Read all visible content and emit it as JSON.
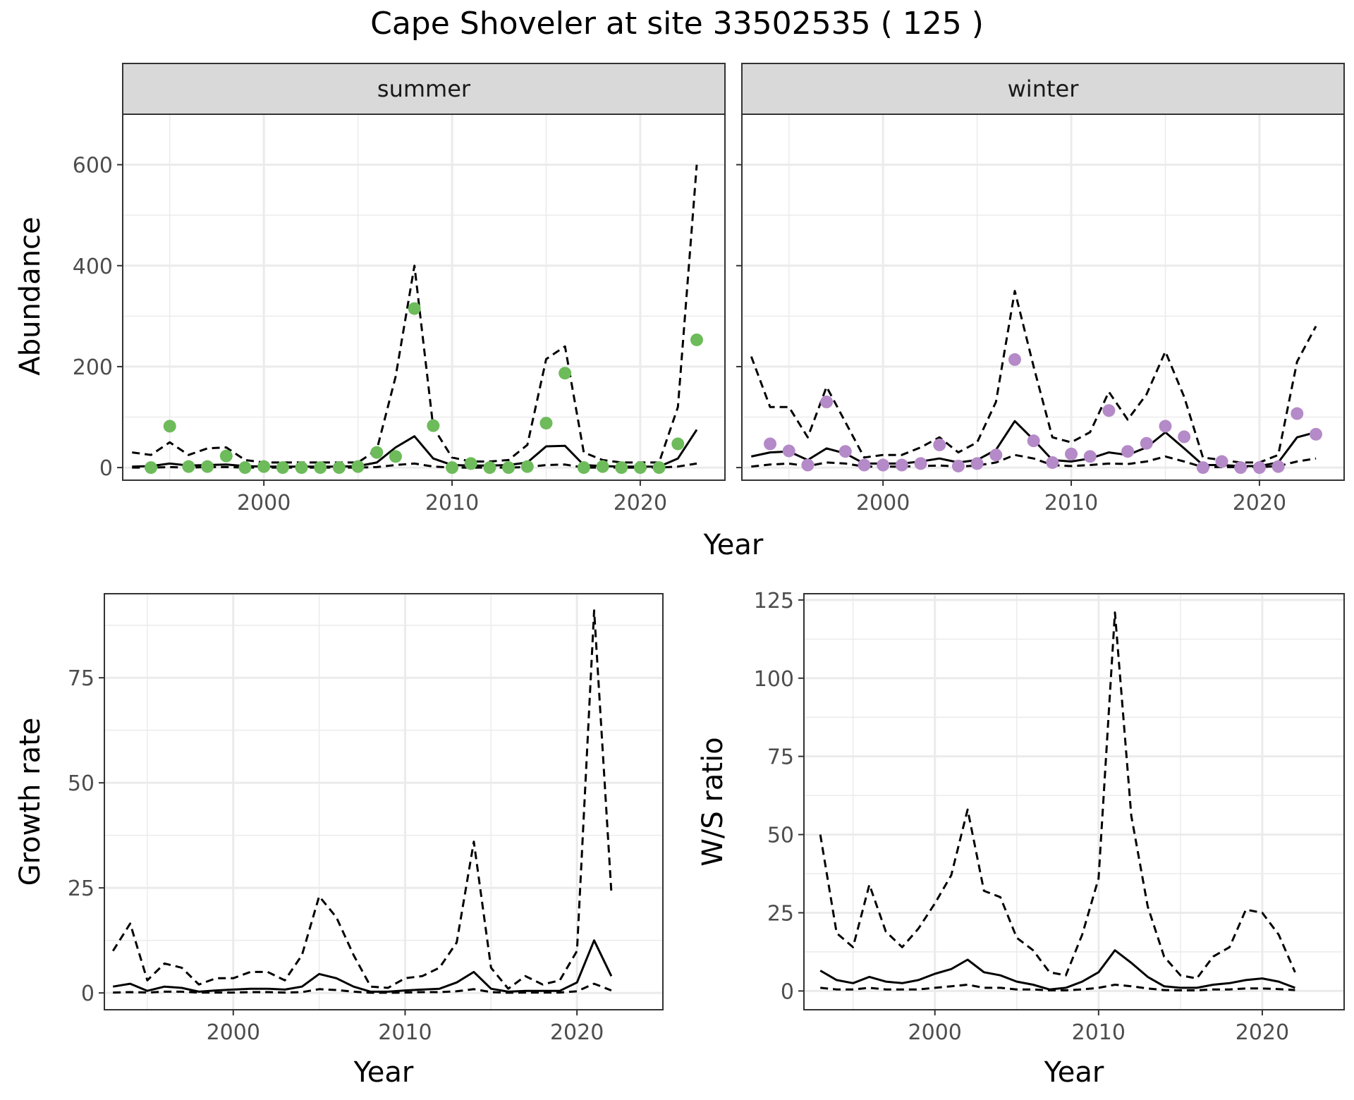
{
  "figure_title": "Cape Shoveler at site 33502535 ( 125 )",
  "colors": {
    "summer": "#6dbb5a",
    "winter": "#b58ac8",
    "line": "#000000",
    "strip": "#d9d9d9",
    "grid": "#ebebeb"
  },
  "chart_data": [
    {
      "id": "summer",
      "type": "line",
      "facet_label": "summer",
      "xlabel": "Year",
      "ylabel": "Abundance",
      "xlim": [
        1992.5,
        2024.5
      ],
      "ylim": [
        -25,
        700
      ],
      "xticks": [
        2000,
        2010,
        2020
      ],
      "yticks": [
        0,
        200,
        400,
        600
      ],
      "grid": true,
      "point_color": "#6dbb5a",
      "points": {
        "x": [
          1994,
          1995,
          1996,
          1997,
          1998,
          1999,
          2000,
          2001,
          2002,
          2003,
          2004,
          2005,
          2006,
          2007,
          2008,
          2009,
          2010,
          2011,
          2012,
          2013,
          2014,
          2015,
          2016,
          2017,
          2018,
          2019,
          2020,
          2021,
          2022,
          2023
        ],
        "y": [
          0,
          82,
          2,
          2,
          23,
          0,
          2,
          0,
          0,
          0,
          0,
          2,
          30,
          22,
          315,
          83,
          0,
          8,
          0,
          0,
          2,
          88,
          187,
          0,
          2,
          0,
          0,
          0,
          47,
          253
        ]
      },
      "series": [
        {
          "name": "",
          "style": "solid",
          "x": [
            1993,
            1994,
            1995,
            1996,
            1997,
            1998,
            1999,
            2000,
            2001,
            2002,
            2003,
            2004,
            2005,
            2006,
            2007,
            2008,
            2009,
            2010,
            2011,
            2012,
            2013,
            2014,
            2015,
            2016,
            2017,
            2018,
            2019,
            2020,
            2021,
            2022,
            2023
          ],
          "y": [
            2,
            3,
            8,
            4,
            5,
            6,
            3,
            2,
            2,
            2,
            2,
            2,
            3,
            10,
            40,
            62,
            18,
            5,
            4,
            4,
            5,
            10,
            42,
            43,
            5,
            3,
            2,
            2,
            2,
            18,
            75
          ]
        },
        {
          "name": "",
          "style": "dashed",
          "x": [
            1993,
            1994,
            1995,
            1996,
            1997,
            1998,
            1999,
            2000,
            2001,
            2002,
            2003,
            2004,
            2005,
            2006,
            2007,
            2008,
            2009,
            2010,
            2011,
            2012,
            2013,
            2014,
            2015,
            2016,
            2017,
            2018,
            2019,
            2020,
            2021,
            2022,
            2023
          ],
          "y": [
            30,
            25,
            50,
            25,
            38,
            40,
            15,
            10,
            10,
            10,
            10,
            10,
            10,
            35,
            180,
            400,
            80,
            20,
            12,
            12,
            15,
            45,
            215,
            240,
            30,
            15,
            10,
            10,
            10,
            120,
            600
          ]
        },
        {
          "name": "",
          "style": "dashed",
          "x": [
            1993,
            1994,
            1995,
            1996,
            1997,
            1998,
            1999,
            2000,
            2001,
            2002,
            2003,
            2004,
            2005,
            2006,
            2007,
            2008,
            2009,
            2010,
            2011,
            2012,
            2013,
            2014,
            2015,
            2016,
            2017,
            2018,
            2019,
            2020,
            2021,
            2022,
            2023
          ],
          "y": [
            0,
            0,
            1,
            0,
            1,
            1,
            0,
            0,
            0,
            0,
            0,
            0,
            0,
            1,
            5,
            8,
            2,
            0,
            0,
            0,
            0,
            1,
            5,
            6,
            0,
            0,
            0,
            0,
            0,
            2,
            8
          ]
        }
      ]
    },
    {
      "id": "winter",
      "type": "line",
      "facet_label": "winter",
      "xlabel": "Year",
      "ylabel": "Abundance",
      "xlim": [
        1992.5,
        2024.5
      ],
      "ylim": [
        -25,
        700
      ],
      "xticks": [
        2000,
        2010,
        2020
      ],
      "yticks": [
        0,
        200,
        400,
        600
      ],
      "grid": true,
      "point_color": "#b58ac8",
      "points": {
        "x": [
          1994,
          1995,
          1996,
          1997,
          1998,
          1999,
          2000,
          2001,
          2002,
          2003,
          2004,
          2005,
          2006,
          2007,
          2008,
          2009,
          2010,
          2011,
          2012,
          2013,
          2014,
          2015,
          2016,
          2017,
          2018,
          2019,
          2020,
          2021,
          2022,
          2023
        ],
        "y": [
          47,
          33,
          5,
          130,
          32,
          5,
          5,
          5,
          8,
          45,
          3,
          8,
          25,
          214,
          53,
          10,
          27,
          22,
          113,
          32,
          48,
          82,
          61,
          0,
          12,
          0,
          0,
          2,
          107,
          66
        ]
      },
      "series": [
        {
          "name": "",
          "style": "solid",
          "x": [
            1993,
            1994,
            1995,
            1996,
            1997,
            1998,
            1999,
            2000,
            2001,
            2002,
            2003,
            2004,
            2005,
            2006,
            2007,
            2008,
            2009,
            2010,
            2011,
            2012,
            2013,
            2014,
            2015,
            2016,
            2017,
            2018,
            2019,
            2020,
            2021,
            2022,
            2023
          ],
          "y": [
            22,
            30,
            32,
            15,
            38,
            28,
            8,
            8,
            8,
            12,
            18,
            10,
            15,
            35,
            92,
            55,
            15,
            12,
            18,
            30,
            25,
            40,
            70,
            38,
            5,
            5,
            3,
            3,
            10,
            60,
            70
          ]
        },
        {
          "name": "",
          "style": "dashed",
          "x": [
            1993,
            1994,
            1995,
            1996,
            1997,
            1998,
            1999,
            2000,
            2001,
            2002,
            2003,
            2004,
            2005,
            2006,
            2007,
            2008,
            2009,
            2010,
            2011,
            2012,
            2013,
            2014,
            2015,
            2016,
            2017,
            2018,
            2019,
            2020,
            2021,
            2022,
            2023
          ],
          "y": [
            220,
            120,
            120,
            60,
            160,
            90,
            20,
            25,
            25,
            40,
            60,
            30,
            50,
            130,
            350,
            200,
            60,
            50,
            70,
            150,
            95,
            145,
            230,
            140,
            20,
            15,
            10,
            10,
            25,
            210,
            280
          ]
        },
        {
          "name": "",
          "style": "dashed",
          "x": [
            1993,
            1994,
            1995,
            1996,
            1997,
            1998,
            1999,
            2000,
            2001,
            2002,
            2003,
            2004,
            2005,
            2006,
            2007,
            2008,
            2009,
            2010,
            2011,
            2012,
            2013,
            2014,
            2015,
            2016,
            2017,
            2018,
            2019,
            2020,
            2021,
            2022,
            2023
          ],
          "y": [
            2,
            6,
            8,
            3,
            10,
            8,
            2,
            2,
            2,
            3,
            4,
            2,
            4,
            10,
            25,
            18,
            5,
            3,
            5,
            8,
            7,
            12,
            22,
            12,
            1,
            1,
            1,
            1,
            3,
            12,
            18
          ]
        }
      ]
    },
    {
      "id": "growth",
      "type": "line",
      "xlabel": "Year",
      "ylabel": "Growth rate",
      "xlim": [
        1992.5,
        2025
      ],
      "ylim": [
        -4,
        95
      ],
      "xticks": [
        2000,
        2010,
        2020
      ],
      "yticks": [
        0,
        25,
        50,
        75
      ],
      "grid": true,
      "series": [
        {
          "name": "",
          "style": "solid",
          "x": [
            1993,
            1994,
            1995,
            1996,
            1997,
            1998,
            1999,
            2000,
            2001,
            2002,
            2003,
            2004,
            2005,
            2006,
            2007,
            2008,
            2009,
            2010,
            2011,
            2012,
            2013,
            2014,
            2015,
            2016,
            2017,
            2018,
            2019,
            2020,
            2021,
            2022
          ],
          "y": [
            1.5,
            2.2,
            0.5,
            1.5,
            1.2,
            0.3,
            0.6,
            0.8,
            1.0,
            1.0,
            0.8,
            1.5,
            4.5,
            3.5,
            1.5,
            0.3,
            0.3,
            0.6,
            0.8,
            1.0,
            2.5,
            5.0,
            1.0,
            0.3,
            0.5,
            0.5,
            0.5,
            2.5,
            12.5,
            4.0
          ]
        },
        {
          "name": "",
          "style": "dashed",
          "x": [
            1993,
            1994,
            1995,
            1996,
            1997,
            1998,
            1999,
            2000,
            2001,
            2002,
            2003,
            2004,
            2005,
            2006,
            2007,
            2008,
            2009,
            2010,
            2011,
            2012,
            2013,
            2014,
            2015,
            2016,
            2017,
            2018,
            2019,
            2020,
            2021,
            2022
          ],
          "y": [
            10,
            16.5,
            3,
            7,
            6,
            2,
            3.5,
            3.5,
            5,
            5,
            3,
            9,
            23,
            18,
            9,
            1.5,
            1.2,
            3.5,
            4,
            6,
            12,
            36,
            6,
            1,
            4,
            2,
            3,
            10,
            91,
            24
          ]
        },
        {
          "name": "",
          "style": "dashed",
          "x": [
            1993,
            1994,
            1995,
            1996,
            1997,
            1998,
            1999,
            2000,
            2001,
            2002,
            2003,
            2004,
            2005,
            2006,
            2007,
            2008,
            2009,
            2010,
            2011,
            2012,
            2013,
            2014,
            2015,
            2016,
            2017,
            2018,
            2019,
            2020,
            2021,
            2022
          ],
          "y": [
            0.1,
            0.2,
            0.1,
            0.3,
            0.3,
            0.1,
            0.1,
            0.1,
            0.2,
            0.2,
            0.1,
            0.2,
            0.9,
            0.7,
            0.3,
            0.05,
            0.05,
            0.1,
            0.2,
            0.2,
            0.4,
            0.9,
            0.2,
            0.05,
            0.1,
            0.1,
            0.1,
            0.4,
            2.2,
            0.6
          ]
        }
      ]
    },
    {
      "id": "ws",
      "type": "line",
      "xlabel": "Year",
      "ylabel": "W/S ratio",
      "xlim": [
        1992,
        2025
      ],
      "ylim": [
        -6,
        127
      ],
      "xticks": [
        2000,
        2010,
        2020
      ],
      "yticks": [
        0,
        25,
        50,
        75,
        100,
        125
      ],
      "grid": true,
      "series": [
        {
          "name": "",
          "style": "solid",
          "x": [
            1993,
            1994,
            1995,
            1996,
            1997,
            1998,
            1999,
            2000,
            2001,
            2002,
            2003,
            2004,
            2005,
            2006,
            2007,
            2008,
            2009,
            2010,
            2011,
            2012,
            2013,
            2014,
            2015,
            2016,
            2017,
            2018,
            2019,
            2020,
            2021,
            2022
          ],
          "y": [
            6.5,
            3.5,
            2.5,
            4.5,
            3,
            2.5,
            3.5,
            5.5,
            7,
            10,
            6,
            5,
            3,
            2,
            0.5,
            1,
            3,
            6,
            13,
            9,
            4.5,
            1.5,
            1,
            1,
            2,
            2.5,
            3.5,
            4,
            3,
            1
          ]
        },
        {
          "name": "",
          "style": "dashed",
          "x": [
            1993,
            1994,
            1995,
            1996,
            1997,
            1998,
            1999,
            2000,
            2001,
            2002,
            2003,
            2004,
            2005,
            2006,
            2007,
            2008,
            2009,
            2010,
            2011,
            2012,
            2013,
            2014,
            2015,
            2016,
            2017,
            2018,
            2019,
            2020,
            2021,
            2022
          ],
          "y": [
            50,
            18.5,
            14,
            34,
            19,
            14,
            20,
            28,
            37,
            58,
            32,
            30,
            17,
            13,
            6,
            5,
            18,
            36,
            121,
            56,
            27,
            11,
            5,
            4,
            11,
            14,
            26,
            25,
            18,
            6
          ]
        },
        {
          "name": "",
          "style": "dashed",
          "x": [
            1993,
            1994,
            1995,
            1996,
            1997,
            1998,
            1999,
            2000,
            2001,
            2002,
            2003,
            2004,
            2005,
            2006,
            2007,
            2008,
            2009,
            2010,
            2011,
            2012,
            2013,
            2014,
            2015,
            2016,
            2017,
            2018,
            2019,
            2020,
            2021,
            2022
          ],
          "y": [
            1,
            0.5,
            0.5,
            1,
            0.5,
            0.5,
            0.5,
            1,
            1.5,
            2,
            1,
            1,
            0.5,
            0.5,
            0.2,
            0.2,
            0.5,
            1,
            2,
            1.5,
            0.8,
            0.3,
            0.2,
            0.2,
            0.5,
            0.5,
            0.8,
            0.8,
            0.6,
            0.3
          ]
        }
      ]
    }
  ]
}
